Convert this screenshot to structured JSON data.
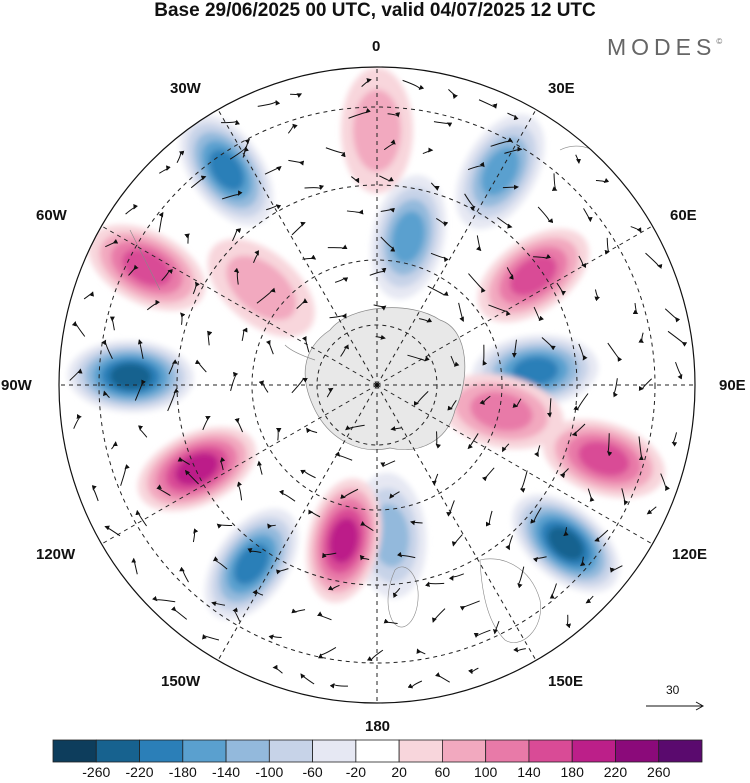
{
  "title": "Base 29/06/2025 00 UTC, valid 04/07/2025 12 UTC",
  "brand": "MODES",
  "brand_mark": "©",
  "longitude_labels": {
    "lon_0": "0",
    "lon_30e": "30E",
    "lon_60e": "60E",
    "lon_90e": "90E",
    "lon_120e": "120E",
    "lon_150e": "150E",
    "lon_180": "180",
    "lon_150w": "150W",
    "lon_120w": "120W",
    "lon_90w": "90W",
    "lon_60w": "60W",
    "lon_30w": "30W"
  },
  "reference_vector": {
    "label": "30"
  },
  "colorbar": {
    "labels": [
      "-260",
      "-220",
      "-180",
      "-140",
      "-100",
      "-60",
      "-20",
      "20",
      "60",
      "100",
      "140",
      "180",
      "220",
      "260"
    ],
    "colors": [
      "#0d3d5c",
      "#17628f",
      "#2b7fb8",
      "#5aa0cf",
      "#93b9dc",
      "#c7d3e8",
      "#e6e8f3",
      "#ffffff",
      "#f8d6dc",
      "#f2a9bf",
      "#e87aa8",
      "#d94b96",
      "#bc1f89",
      "#8b0a7a",
      "#5a0a6e"
    ]
  },
  "anomaly_features": [
    {
      "lon": 0,
      "lat_deg_from_pole": 64,
      "value": 80
    },
    {
      "lon": 30,
      "lat_deg_from_pole": 62,
      "value": -160
    },
    {
      "lon": 12,
      "lat_deg_from_pole": 38,
      "value": -150
    },
    {
      "lon": 55,
      "lat_deg_from_pole": 48,
      "value": 150
    },
    {
      "lon": 85,
      "lat_deg_from_pole": 40,
      "value": -200
    },
    {
      "lon": 108,
      "lat_deg_from_pole": 60,
      "value": 170
    },
    {
      "lon": 102,
      "lat_deg_from_pole": 32,
      "value": 120
    },
    {
      "lon": 130,
      "lat_deg_from_pole": 62,
      "value": -220
    },
    {
      "lon": 175,
      "lat_deg_from_pole": 38,
      "value": -110
    },
    {
      "lon": -168,
      "lat_deg_from_pole": 40,
      "value": 200
    },
    {
      "lon": -145,
      "lat_deg_from_pole": 55,
      "value": -180
    },
    {
      "lon": -115,
      "lat_deg_from_pole": 50,
      "value": 190
    },
    {
      "lon": -88,
      "lat_deg_from_pole": 62,
      "value": -240
    },
    {
      "lon": -63,
      "lat_deg_from_pole": 65,
      "value": 170
    },
    {
      "lon": -35,
      "lat_deg_from_pole": 66,
      "value": -200
    },
    {
      "lon": -50,
      "lat_deg_from_pole": 38,
      "value": 60
    }
  ]
}
